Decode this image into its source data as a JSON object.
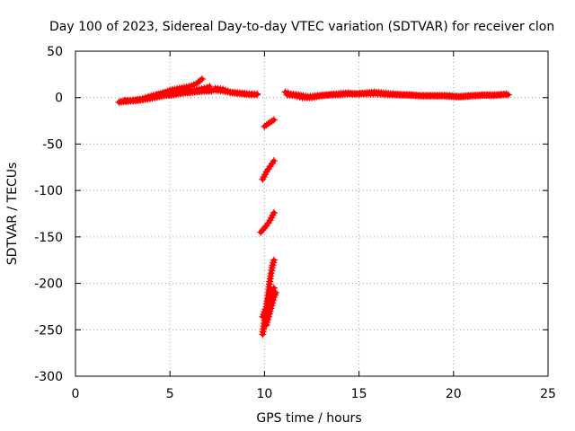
{
  "chart_data": {
    "type": "scatter",
    "title": "Day 100 of 2023, Sidereal Day-to-day VTEC variation (SDTVAR) for receiver clon",
    "xlabel": "GPS time / hours",
    "ylabel": "SDTVAR / TECUs",
    "xlim": [
      0,
      25
    ],
    "ylim": [
      -300,
      50
    ],
    "xticks": [
      0,
      5,
      10,
      15,
      20,
      25
    ],
    "yticks": [
      -300,
      -250,
      -200,
      -150,
      -100,
      -50,
      0,
      50
    ],
    "grid": true,
    "marker": "plus",
    "series": [
      {
        "name": "SDTVAR",
        "color": "#ff0000",
        "segments": [
          [
            [
              2.3,
              -5
            ],
            [
              2.8,
              -4
            ],
            [
              3.3,
              -3
            ],
            [
              3.8,
              -1
            ],
            [
              4.3,
              1
            ],
            [
              4.8,
              3
            ],
            [
              5.3,
              4
            ],
            [
              5.8,
              5
            ],
            [
              6.3,
              6
            ],
            [
              6.8,
              7
            ],
            [
              7.3,
              8
            ],
            [
              7.8,
              7
            ],
            [
              8.3,
              5
            ],
            [
              8.8,
              4
            ],
            [
              9.3,
              3
            ],
            [
              9.6,
              3
            ]
          ],
          [
            [
              2.4,
              -4
            ],
            [
              2.9,
              -3
            ],
            [
              3.4,
              -2
            ],
            [
              4.0,
              2
            ],
            [
              4.5,
              4
            ],
            [
              5.0,
              8
            ],
            [
              5.5,
              10
            ],
            [
              6.0,
              12
            ],
            [
              6.4,
              15
            ],
            [
              6.7,
              20
            ]
          ],
          [
            [
              4.3,
              3
            ],
            [
              4.8,
              5
            ],
            [
              5.3,
              6
            ],
            [
              5.8,
              7
            ],
            [
              6.3,
              8
            ],
            [
              6.8,
              10
            ],
            [
              7.1,
              12
            ]
          ],
          [
            [
              2.6,
              -3
            ],
            [
              3.2,
              -3
            ],
            [
              3.7,
              -2
            ],
            [
              4.2,
              0
            ],
            [
              4.7,
              2
            ],
            [
              5.2,
              3
            ],
            [
              5.7,
              5
            ],
            [
              6.2,
              6
            ],
            [
              6.7,
              7
            ],
            [
              7.2,
              7
            ]
          ],
          [
            [
              7.4,
              10
            ],
            [
              7.8,
              9
            ],
            [
              8.2,
              6
            ],
            [
              8.7,
              5
            ],
            [
              9.2,
              4
            ],
            [
              9.6,
              4
            ]
          ],
          [
            [
              11.1,
              6
            ],
            [
              11.4,
              4
            ],
            [
              11.8,
              3
            ],
            [
              12.3,
              1
            ],
            [
              12.8,
              2
            ],
            [
              13.3,
              3
            ],
            [
              13.8,
              4
            ],
            [
              14.3,
              5
            ],
            [
              14.8,
              4
            ],
            [
              15.3,
              5
            ],
            [
              15.8,
              6
            ],
            [
              16.3,
              5
            ],
            [
              16.8,
              4
            ],
            [
              17.3,
              3
            ],
            [
              17.8,
              3
            ],
            [
              18.3,
              2
            ],
            [
              18.8,
              2
            ],
            [
              19.3,
              2
            ],
            [
              19.8,
              2
            ],
            [
              20.3,
              1
            ],
            [
              20.8,
              2
            ],
            [
              21.3,
              2
            ],
            [
              21.8,
              3
            ],
            [
              22.3,
              3
            ],
            [
              22.8,
              4
            ]
          ],
          [
            [
              11.2,
              3
            ],
            [
              11.6,
              2
            ],
            [
              12.0,
              0
            ],
            [
              12.5,
              0
            ],
            [
              13.0,
              2
            ],
            [
              13.5,
              3
            ],
            [
              14.0,
              3
            ],
            [
              14.5,
              4
            ],
            [
              15.0,
              4
            ],
            [
              15.5,
              4
            ],
            [
              16.0,
              4
            ],
            [
              16.5,
              3
            ],
            [
              17.0,
              3
            ],
            [
              17.5,
              3
            ],
            [
              18.0,
              2
            ],
            [
              18.5,
              2
            ],
            [
              19.0,
              2
            ],
            [
              19.5,
              2
            ],
            [
              20.0,
              1
            ],
            [
              20.5,
              1
            ],
            [
              21.0,
              2
            ],
            [
              21.5,
              3
            ],
            [
              22.0,
              2
            ],
            [
              22.5,
              3
            ],
            [
              22.9,
              3
            ]
          ],
          [
            [
              10.0,
              -31
            ],
            [
              10.2,
              -28
            ],
            [
              10.5,
              -24
            ]
          ],
          [
            [
              9.9,
              -88
            ],
            [
              10.1,
              -80
            ],
            [
              10.3,
              -74
            ],
            [
              10.5,
              -68
            ]
          ],
          [
            [
              9.8,
              -145
            ],
            [
              10.1,
              -138
            ],
            [
              10.3,
              -132
            ],
            [
              10.5,
              -124
            ]
          ],
          [
            [
              9.9,
              -236
            ],
            [
              10.1,
              -225
            ],
            [
              10.3,
              -214
            ],
            [
              10.5,
              -205
            ]
          ],
          [
            [
              9.9,
              -255
            ],
            [
              10.0,
              -240
            ],
            [
              10.1,
              -225
            ],
            [
              10.2,
              -210
            ],
            [
              10.3,
              -195
            ],
            [
              10.4,
              -183
            ],
            [
              10.5,
              -175
            ]
          ],
          [
            [
              10.1,
              -245
            ],
            [
              10.3,
              -230
            ],
            [
              10.5,
              -215
            ],
            [
              10.6,
              -210
            ]
          ]
        ]
      }
    ]
  }
}
